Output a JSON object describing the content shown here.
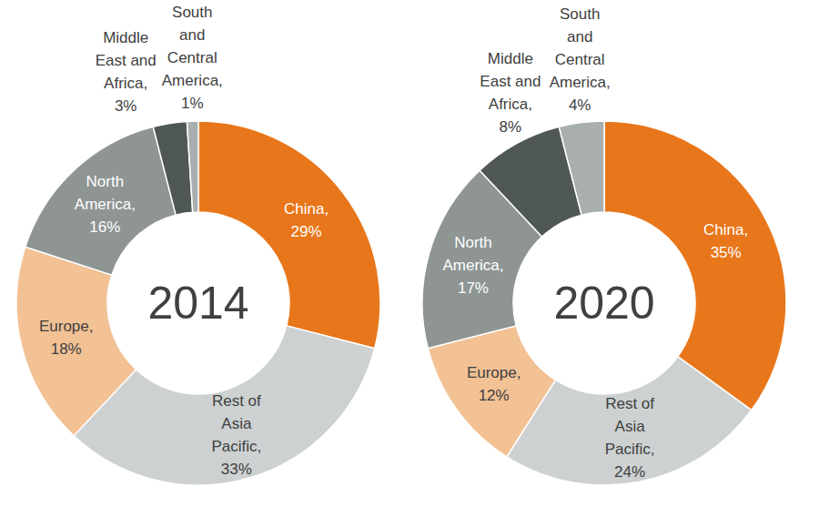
{
  "chart_data": [
    {
      "type": "donut",
      "title": "2014",
      "categories": [
        "China,",
        "Rest of Asia Pacific,",
        "Europe,",
        "North America,",
        "Middle East and Africa,",
        "South and Central America,"
      ],
      "values": [
        29,
        33,
        18,
        16,
        3,
        1
      ],
      "value_labels": [
        "29%",
        "33%",
        "18%",
        "16%",
        "3%",
        "1%"
      ],
      "colors": [
        "#e8761a",
        "#cdd1d1",
        "#f2c194",
        "#8e9593",
        "#505856",
        "#a9afae"
      ],
      "data_labels": true
    },
    {
      "type": "donut",
      "title": "2020",
      "categories": [
        "China,",
        "Rest of Asia Pacific,",
        "Europe,",
        "North America,",
        "Middle East and Africa,",
        "South and Central America,"
      ],
      "values": [
        35,
        24,
        12,
        17,
        8,
        4
      ],
      "value_labels": [
        "35%",
        "24%",
        "12%",
        "17%",
        "8%",
        "4%"
      ],
      "colors": [
        "#e8761a",
        "#cdd1d1",
        "#f2c194",
        "#8e9593",
        "#505856",
        "#a9afae"
      ],
      "data_labels": true
    }
  ]
}
